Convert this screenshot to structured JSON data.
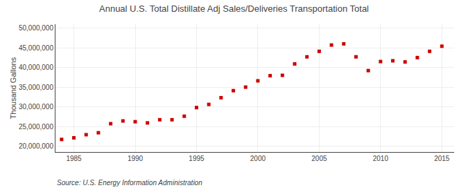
{
  "chart_data": {
    "type": "scatter",
    "title": "Annual U.S. Total Distillate Adj Sales/Deliveries Transportation Total",
    "ylabel": "Thousand Gallons",
    "annotations": [
      "Source: U.S. Energy Information Administration"
    ],
    "x": [
      1984,
      1985,
      1986,
      1987,
      1988,
      1989,
      1990,
      1991,
      1992,
      1993,
      1994,
      1995,
      1996,
      1997,
      1998,
      1999,
      2000,
      2001,
      2002,
      2003,
      2004,
      2005,
      2006,
      2007,
      2008,
      2009,
      2010,
      2011,
      2012,
      2013,
      2014,
      2015
    ],
    "values": [
      21700000,
      22100000,
      22900000,
      23400000,
      25700000,
      26400000,
      26200000,
      25900000,
      26700000,
      26700000,
      27600000,
      29800000,
      30600000,
      32300000,
      34100000,
      35000000,
      36600000,
      37900000,
      38000000,
      40900000,
      42700000,
      44100000,
      45700000,
      46000000,
      42700000,
      39200000,
      41500000,
      41700000,
      41400000,
      42500000,
      44100000,
      45400000
    ],
    "color": "#cc0000",
    "marker": "square",
    "xlim": [
      1983.5,
      2016
    ],
    "xticks": [
      1985,
      1990,
      1995,
      2000,
      2005,
      2010,
      2015
    ],
    "ylim": [
      18500000,
      51000000
    ],
    "yticks": [
      {
        "value": 20000000,
        "label": "20,000,000"
      },
      {
        "value": 25000000,
        "label": "25,000,000"
      },
      {
        "value": 30000000,
        "label": "30,000,000"
      },
      {
        "value": 35000000,
        "label": "35,000,000"
      },
      {
        "value": 40000000,
        "label": "40,000,000"
      },
      {
        "value": 45000000,
        "label": "45,000,000"
      },
      {
        "value": 50000000,
        "label": "50,000,000"
      }
    ],
    "grid": true
  }
}
